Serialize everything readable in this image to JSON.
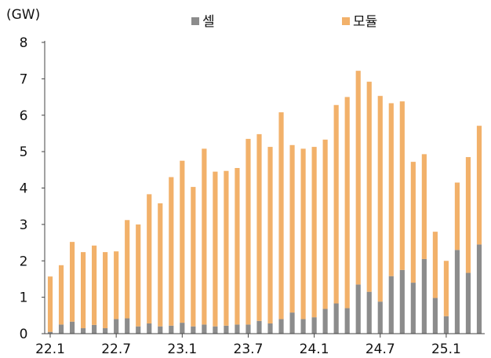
{
  "chart_data": {
    "type": "bar",
    "stacked": true,
    "unit_label": "(GW)",
    "ylim": [
      0,
      8
    ],
    "yticks": [
      0,
      1,
      2,
      3,
      4,
      5,
      6,
      7,
      8
    ],
    "x_tick_labels": [
      "22.1",
      "22.7",
      "23.1",
      "23.7",
      "24.1",
      "24.7",
      "25.1"
    ],
    "x_tick_indices": [
      0,
      6,
      12,
      18,
      24,
      30,
      36
    ],
    "legend_position": "top",
    "colors": {
      "cell": "#8c8c8c",
      "module": "#f2b16a",
      "axis": "#444444"
    },
    "series": [
      {
        "name": "셀",
        "color": "#8c8c8c",
        "values": [
          0.05,
          0.25,
          0.33,
          0.15,
          0.24,
          0.15,
          0.4,
          0.42,
          0.2,
          0.28,
          0.2,
          0.22,
          0.3,
          0.2,
          0.25,
          0.2,
          0.22,
          0.25,
          0.25,
          0.35,
          0.28,
          0.4,
          0.58,
          0.4,
          0.45,
          0.68,
          0.83,
          0.7,
          1.35,
          1.15,
          0.88,
          1.58,
          1.75,
          1.4,
          2.05,
          0.98,
          0.48,
          2.3,
          1.67,
          2.45
        ]
      },
      {
        "name": "모듈",
        "color": "#f2b16a",
        "values": [
          1.52,
          1.63,
          2.19,
          2.09,
          2.18,
          2.09,
          1.86,
          2.7,
          2.8,
          3.55,
          3.38,
          4.08,
          4.45,
          3.83,
          4.83,
          4.25,
          4.25,
          4.3,
          5.1,
          5.13,
          4.85,
          5.68,
          4.6,
          4.68,
          4.68,
          4.65,
          5.45,
          5.8,
          5.87,
          5.77,
          5.65,
          4.75,
          4.63,
          3.32,
          2.88,
          1.82,
          1.52,
          1.85,
          3.18,
          3.26
        ]
      }
    ]
  }
}
